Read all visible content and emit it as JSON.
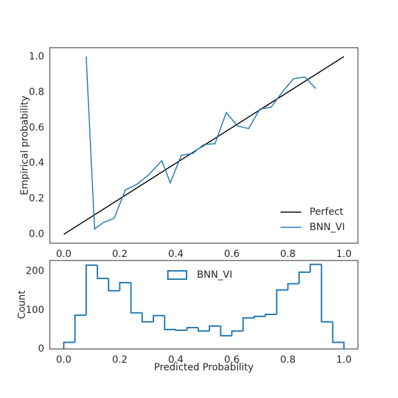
{
  "chart_data": [
    {
      "type": "line",
      "ylabel": "Empirical probability",
      "xlim": [
        -0.05,
        1.05
      ],
      "ylim": [
        -0.05,
        1.05
      ],
      "xticks": [
        {
          "value": 0,
          "label": "0.0"
        },
        {
          "value": 0.2,
          "label": "0.2"
        },
        {
          "value": 0.4,
          "label": "0.4"
        },
        {
          "value": 0.6,
          "label": "0.6"
        },
        {
          "value": 0.8,
          "label": "0.8"
        },
        {
          "value": 1,
          "label": "1.0"
        }
      ],
      "yticks": [
        {
          "value": 0,
          "label": "0.0"
        },
        {
          "value": 0.2,
          "label": "0.2"
        },
        {
          "value": 0.4,
          "label": "0.4"
        },
        {
          "value": 0.6,
          "label": "0.6"
        },
        {
          "value": 0.8,
          "label": "0.8"
        },
        {
          "value": 1,
          "label": "1.0"
        }
      ],
      "legend": "lower right",
      "series": [
        {
          "name": "Perfect",
          "color": "#000000",
          "x": [
            0,
            1
          ],
          "values": [
            0,
            1
          ]
        },
        {
          "name": "BNN_VI",
          "color": "#1f77b4",
          "x": [
            0.08,
            0.11,
            0.14,
            0.18,
            0.22,
            0.26,
            0.3,
            0.35,
            0.38,
            0.42,
            0.46,
            0.5,
            0.54,
            0.58,
            0.62,
            0.66,
            0.7,
            0.74,
            0.78,
            0.82,
            0.86,
            0.9
          ],
          "values": [
            1.0,
            0.03,
            0.065,
            0.09,
            0.25,
            0.28,
            0.33,
            0.415,
            0.29,
            0.445,
            0.455,
            0.505,
            0.51,
            0.685,
            0.61,
            0.595,
            0.705,
            0.715,
            0.8,
            0.875,
            0.885,
            0.82
          ]
        }
      ]
    },
    {
      "type": "histogram",
      "xlabel": "Predicted Probability",
      "ylabel": "Count",
      "xlim": [
        -0.05,
        1.05
      ],
      "ylim": [
        0,
        228
      ],
      "xticks": [
        {
          "value": 0,
          "label": "0.0"
        },
        {
          "value": 0.2,
          "label": "0.2"
        },
        {
          "value": 0.4,
          "label": "0.4"
        },
        {
          "value": 0.6,
          "label": "0.6"
        },
        {
          "value": 0.8,
          "label": "0.8"
        },
        {
          "value": 1,
          "label": "1.0"
        }
      ],
      "yticks": [
        0,
        100,
        200
      ],
      "legend": "upper center",
      "bins": [
        0,
        0.04,
        0.08,
        0.12,
        0.16,
        0.2,
        0.24,
        0.28,
        0.32,
        0.36,
        0.4,
        0.44,
        0.48,
        0.52,
        0.56,
        0.6,
        0.64,
        0.68,
        0.72,
        0.76,
        0.8,
        0.84,
        0.88,
        0.92,
        0.96,
        1.0
      ],
      "series": [
        {
          "name": "BNN_VI",
          "color": "#1f77b4",
          "values": [
            17,
            87,
            216,
            182,
            150,
            171,
            93,
            70,
            86,
            50,
            48,
            55,
            46,
            59,
            34,
            46,
            80,
            84,
            89,
            152,
            168,
            198,
            218,
            70,
            17
          ]
        }
      ]
    }
  ]
}
